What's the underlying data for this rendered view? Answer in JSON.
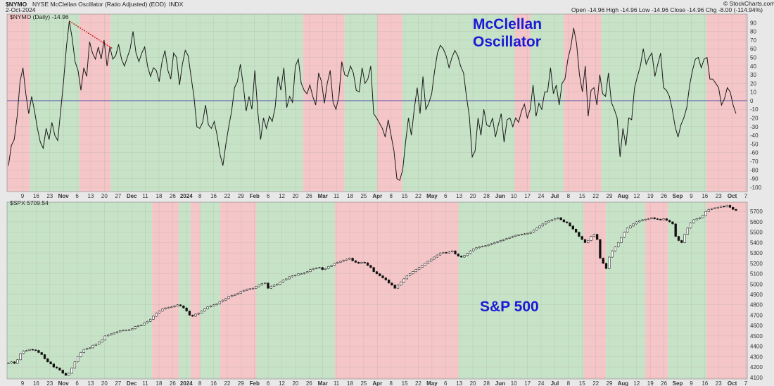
{
  "header": {
    "symbol": "$NYMO",
    "title": "NYSE McClellan Oscillator (Ratio Adjusted) (EOD)",
    "exchange": "INDX",
    "date": "2-Oct-2024",
    "ohlc": "Open -14.96  High -14.96  Low -14.96  Close -14.96  Chg -8.00 (-114.94%)",
    "watermark": "© StockCharts.com",
    "osc_legend": "$NYMO (Daily) -14.96",
    "spx_legend": "$SPX 5709.54"
  },
  "annotations": {
    "osc_title_line1": "McClellan",
    "osc_title_line2": "Oscillator",
    "spx_title": "S&P 500"
  },
  "colors": {
    "green_band": "#c7e3c7",
    "red_band": "#f5c6c8",
    "osc_line": "#1a1a1a",
    "zero_line": "#4a4aa0",
    "trendline": "#d01818",
    "annotation": "#1a1ad6"
  },
  "chart_data": [
    {
      "type": "line",
      "name": "$NYMO",
      "ylim": [
        -105,
        100
      ],
      "y_ticks": [
        90,
        80,
        70,
        60,
        50,
        40,
        30,
        20,
        10,
        0,
        -10,
        -20,
        -30,
        -40,
        -50,
        -60,
        -70,
        -80,
        -90,
        -100
      ],
      "x_labels": [
        "9",
        "16",
        "23",
        "Nov",
        "6",
        "13",
        "20",
        "27",
        "Dec",
        "11",
        "18",
        "26",
        "2024",
        "8",
        "16",
        "22",
        "29",
        "Feb",
        "6",
        "12",
        "20",
        "26",
        "Mar",
        "11",
        "18",
        "25",
        "Apr",
        "8",
        "15",
        "22",
        "May",
        "6",
        "13",
        "20",
        "28",
        "Jun",
        "10",
        "17",
        "24",
        "Jul",
        "8",
        "15",
        "22",
        "29",
        "Aug",
        "12",
        "19",
        "26",
        "Sep",
        "9",
        "16",
        "23",
        "Oct",
        "7"
      ],
      "values": [
        -75,
        -52,
        -45,
        -18,
        22,
        38,
        8,
        -15,
        5,
        -12,
        -32,
        -48,
        -55,
        -32,
        -45,
        -25,
        -40,
        -46,
        -12,
        22,
        62,
        92,
        72,
        45,
        35,
        12,
        38,
        28,
        68,
        55,
        48,
        62,
        48,
        70,
        40,
        62,
        48,
        52,
        65,
        48,
        40,
        50,
        60,
        80,
        55,
        45,
        55,
        62,
        40,
        28,
        38,
        35,
        22,
        45,
        58,
        35,
        25,
        55,
        50,
        18,
        42,
        58,
        52,
        28,
        5,
        -30,
        -32,
        -25,
        -5,
        -28,
        -32,
        -24,
        -40,
        -62,
        -75,
        -50,
        -30,
        -12,
        15,
        22,
        42,
        18,
        -12,
        5,
        -10,
        35,
        -12,
        -45,
        -20,
        -32,
        -18,
        -24,
        -8,
        28,
        12,
        38,
        -8,
        5,
        -2,
        40,
        48,
        20,
        12,
        8,
        18,
        5,
        -5,
        32,
        22,
        -3,
        20,
        35,
        -2,
        -10,
        5,
        45,
        30,
        28,
        40,
        32,
        12,
        10,
        38,
        20,
        25,
        40,
        -15,
        -20,
        -26,
        -32,
        -42,
        -22,
        -40,
        -58,
        -90,
        -92,
        -80,
        -48,
        -20,
        -40,
        -10,
        15,
        -15,
        28,
        -10,
        -3,
        8,
        34,
        55,
        64,
        60,
        52,
        38,
        50,
        58,
        52,
        40,
        32,
        5,
        -18,
        -65,
        -58,
        -20,
        -40,
        -10,
        -28,
        -30,
        -20,
        -42,
        -28,
        -15,
        -48,
        -22,
        -20,
        -30,
        -20,
        -25,
        -12,
        -4,
        -20,
        -10,
        18,
        -18,
        -3,
        -10,
        10,
        10,
        38,
        8,
        18,
        -5,
        20,
        25,
        48,
        62,
        84,
        66,
        30,
        10,
        40,
        -18,
        12,
        15,
        -5,
        30,
        8,
        5,
        32,
        -2,
        -10,
        -20,
        -65,
        -32,
        -52,
        -20,
        -22,
        15,
        28,
        40,
        60,
        42,
        50,
        55,
        28,
        42,
        55,
        15,
        12,
        5,
        -10,
        -30,
        -42,
        -28,
        -20,
        -8,
        18,
        35,
        48,
        50,
        38,
        48,
        50,
        25,
        25,
        20,
        15,
        -5,
        2,
        15,
        10,
        -5,
        -15
      ],
      "trendline": {
        "from_index": 21,
        "from_value": 92,
        "to_index": 36,
        "to_value": 60
      }
    },
    {
      "type": "line",
      "name": "$SPX",
      "ylim": [
        4085,
        5790
      ],
      "y_ticks": [
        5700,
        5600,
        5500,
        5400,
        5300,
        5200,
        5100,
        5000,
        4900,
        4800,
        4700,
        4600,
        4500,
        4400,
        4300,
        4200,
        4100
      ],
      "x_labels": [
        "9",
        "16",
        "23",
        "Nov",
        "6",
        "13",
        "20",
        "27",
        "Dec",
        "11",
        "18",
        "26",
        "2024",
        "8",
        "16",
        "22",
        "29",
        "Feb",
        "6",
        "12",
        "20",
        "26",
        "Mar",
        "11",
        "18",
        "25",
        "Apr",
        "8",
        "15",
        "22",
        "May",
        "6",
        "13",
        "20",
        "28",
        "Jun",
        "10",
        "17",
        "24",
        "Jul",
        "8",
        "15",
        "22",
        "29",
        "Aug",
        "12",
        "19",
        "26",
        "Sep",
        "9",
        "16",
        "23",
        "Oct",
        "7"
      ],
      "values": [
        4240,
        4250,
        4235,
        4270,
        4330,
        4355,
        4360,
        4370,
        4365,
        4360,
        4340,
        4320,
        4280,
        4250,
        4230,
        4200,
        4190,
        4170,
        4140,
        4120,
        4140,
        4190,
        4250,
        4300,
        4340,
        4370,
        4380,
        4385,
        4410,
        4420,
        4440,
        4460,
        4500,
        4510,
        4520,
        4530,
        4540,
        4550,
        4555,
        4555,
        4560,
        4570,
        4590,
        4600,
        4605,
        4625,
        4640,
        4660,
        4690,
        4720,
        4740,
        4760,
        4770,
        4775,
        4780,
        4790,
        4800,
        4790,
        4770,
        4740,
        4700,
        4690,
        4710,
        4720,
        4740,
        4760,
        4780,
        4790,
        4800,
        4810,
        4830,
        4845,
        4860,
        4880,
        4890,
        4900,
        4910,
        4930,
        4940,
        4950,
        4955,
        4960,
        4975,
        4990,
        5005,
        5010,
        4960,
        4980,
        4990,
        5000,
        5020,
        5040,
        5050,
        5070,
        5080,
        5085,
        5100,
        5100,
        5110,
        5120,
        5140,
        5150,
        5155,
        5160,
        5140,
        5150,
        5170,
        5180,
        5200,
        5210,
        5220,
        5230,
        5240,
        5250,
        5225,
        5210,
        5200,
        5210,
        5205,
        5180,
        5160,
        5120,
        5100,
        5080,
        5060,
        5040,
        5010,
        4990,
        4960,
        4990,
        5020,
        5050,
        5080,
        5100,
        5120,
        5140,
        5160,
        5180,
        5200,
        5220,
        5240,
        5260,
        5280,
        5300,
        5305,
        5300,
        5310,
        5320,
        5290,
        5270,
        5260,
        5275,
        5295,
        5320,
        5340,
        5350,
        5360,
        5365,
        5370,
        5380,
        5390,
        5400,
        5410,
        5420,
        5430,
        5440,
        5450,
        5460,
        5470,
        5475,
        5480,
        5485,
        5490,
        5500,
        5520,
        5540,
        5560,
        5580,
        5600,
        5610,
        5620,
        5630,
        5640,
        5620,
        5600,
        5590,
        5560,
        5530,
        5500,
        5460,
        5430,
        5400,
        5420,
        5460,
        5480,
        5430,
        5250,
        5200,
        5150,
        5260,
        5320,
        5360,
        5400,
        5450,
        5500,
        5540,
        5560,
        5580,
        5600,
        5610,
        5620,
        5625,
        5630,
        5640,
        5630,
        5625,
        5620,
        5630,
        5615,
        5600,
        5580,
        5460,
        5420,
        5400,
        5480,
        5540,
        5590,
        5620,
        5630,
        5640,
        5660,
        5700,
        5720,
        5730,
        5735,
        5740,
        5750,
        5745,
        5760,
        5740,
        5720,
        5710
      ]
    }
  ],
  "regimes": [
    {
      "to": 0.031,
      "color": "red"
    },
    {
      "to": 0.098,
      "color": "green"
    },
    {
      "to": 0.14,
      "color": "red"
    },
    {
      "to": 0.4,
      "color": "green"
    },
    {
      "to": 0.456,
      "color": "red"
    },
    {
      "to": 0.5,
      "color": "green"
    },
    {
      "to": 0.534,
      "color": "red"
    },
    {
      "to": 0.686,
      "color": "green"
    },
    {
      "to": 0.707,
      "color": "red"
    },
    {
      "to": 0.752,
      "color": "green"
    },
    {
      "to": 0.803,
      "color": "red"
    },
    {
      "to": 0.945,
      "color": "green"
    },
    {
      "to": 1.0,
      "color": "red"
    },
    {
      "to": 1.196,
      "color": "green"
    },
    {
      "to": 1.232,
      "color": "red"
    },
    {
      "to": 1.248,
      "color": "green"
    },
    {
      "to": 1.261,
      "color": "red"
    },
    {
      "to": 1.288,
      "color": "green"
    },
    {
      "to": 1.337,
      "color": "red"
    },
    {
      "to": 1.443,
      "color": "green"
    },
    {
      "to": 1.61,
      "color": "red"
    },
    {
      "to": 1.779,
      "color": "green"
    },
    {
      "to": 1.809,
      "color": "red"
    },
    {
      "to": 1.862,
      "color": "green"
    },
    {
      "to": 1.893,
      "color": "red"
    },
    {
      "to": 1.945,
      "color": "green"
    },
    {
      "to": 2.0,
      "color": "red"
    }
  ]
}
